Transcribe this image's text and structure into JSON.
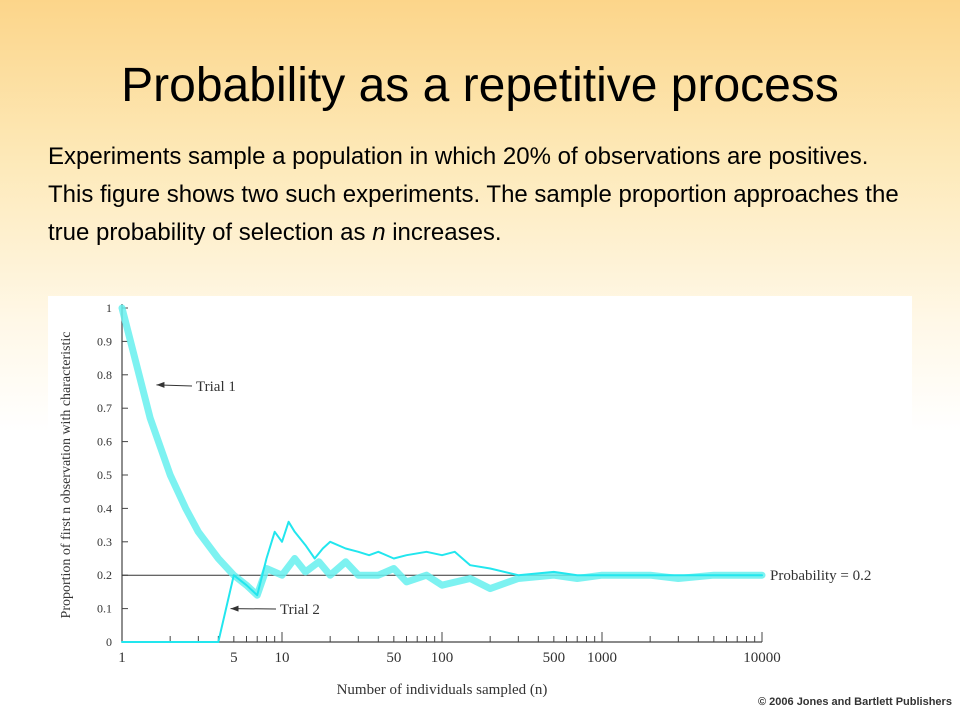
{
  "slide": {
    "title": "Probability as a repetitive process",
    "body_before": "Experiments sample a population in which 20% of observations are positives. This figure shows two such experiments. The sample proportion approaches the true probability of selection as ",
    "body_italic": "n",
    "body_after": " increases.",
    "credit": "© 2006 Jones and Bartlett Publishers"
  },
  "colors": {
    "trial1": "#66f0ee",
    "trial2": "#22e6ee",
    "reference": "#333333"
  },
  "chart_data": {
    "type": "line",
    "xscale": "log",
    "xlim": [
      1,
      10000
    ],
    "ylim": [
      0,
      1
    ],
    "xlabel": "Number of individuals sampled (n)",
    "ylabel": "Proportion of first n observation with characteristic",
    "x_ticks": [
      "1",
      "5",
      "10",
      "50",
      "100",
      "500",
      "1000",
      "10000"
    ],
    "x_tick_values": [
      1,
      5,
      10,
      50,
      100,
      500,
      1000,
      10000
    ],
    "y_ticks": [
      "0",
      "0.1",
      "0.2",
      "0.3",
      "0.4",
      "0.5",
      "0.6",
      "0.7",
      "0.8",
      "0.9",
      "1"
    ],
    "y_tick_values": [
      0,
      0.1,
      0.2,
      0.3,
      0.4,
      0.5,
      0.6,
      0.7,
      0.8,
      0.9,
      1
    ],
    "reference_line": {
      "y": 0.2,
      "label": "Probability = 0.2"
    },
    "series": [
      {
        "name": "Trial 1",
        "x": [
          1,
          1.5,
          2,
          2.5,
          3,
          4,
          5,
          6,
          7,
          8,
          10,
          12,
          14,
          17,
          20,
          25,
          30,
          40,
          50,
          60,
          80,
          100,
          150,
          200,
          300,
          500,
          700,
          1000,
          2000,
          3000,
          5000,
          7000,
          10000
        ],
        "y": [
          1,
          0.67,
          0.5,
          0.4,
          0.33,
          0.25,
          0.2,
          0.17,
          0.14,
          0.22,
          0.2,
          0.25,
          0.21,
          0.24,
          0.2,
          0.24,
          0.2,
          0.2,
          0.22,
          0.18,
          0.2,
          0.17,
          0.19,
          0.16,
          0.19,
          0.2,
          0.19,
          0.2,
          0.2,
          0.19,
          0.2,
          0.2,
          0.2
        ]
      },
      {
        "name": "Trial 2",
        "x": [
          1,
          2,
          3,
          4,
          5,
          6,
          7,
          8,
          9,
          10,
          11,
          12,
          14,
          16,
          18,
          20,
          25,
          30,
          35,
          40,
          50,
          60,
          80,
          100,
          120,
          150,
          200,
          300,
          500,
          700,
          1000,
          2000,
          3000,
          5000,
          7000,
          10000
        ],
        "y": [
          0,
          0,
          0,
          0,
          0.2,
          0.17,
          0.14,
          0.25,
          0.33,
          0.3,
          0.36,
          0.33,
          0.29,
          0.25,
          0.28,
          0.3,
          0.28,
          0.27,
          0.26,
          0.27,
          0.25,
          0.26,
          0.27,
          0.26,
          0.27,
          0.23,
          0.22,
          0.2,
          0.21,
          0.2,
          0.2,
          0.2,
          0.2,
          0.2,
          0.2,
          0.2
        ]
      }
    ]
  }
}
